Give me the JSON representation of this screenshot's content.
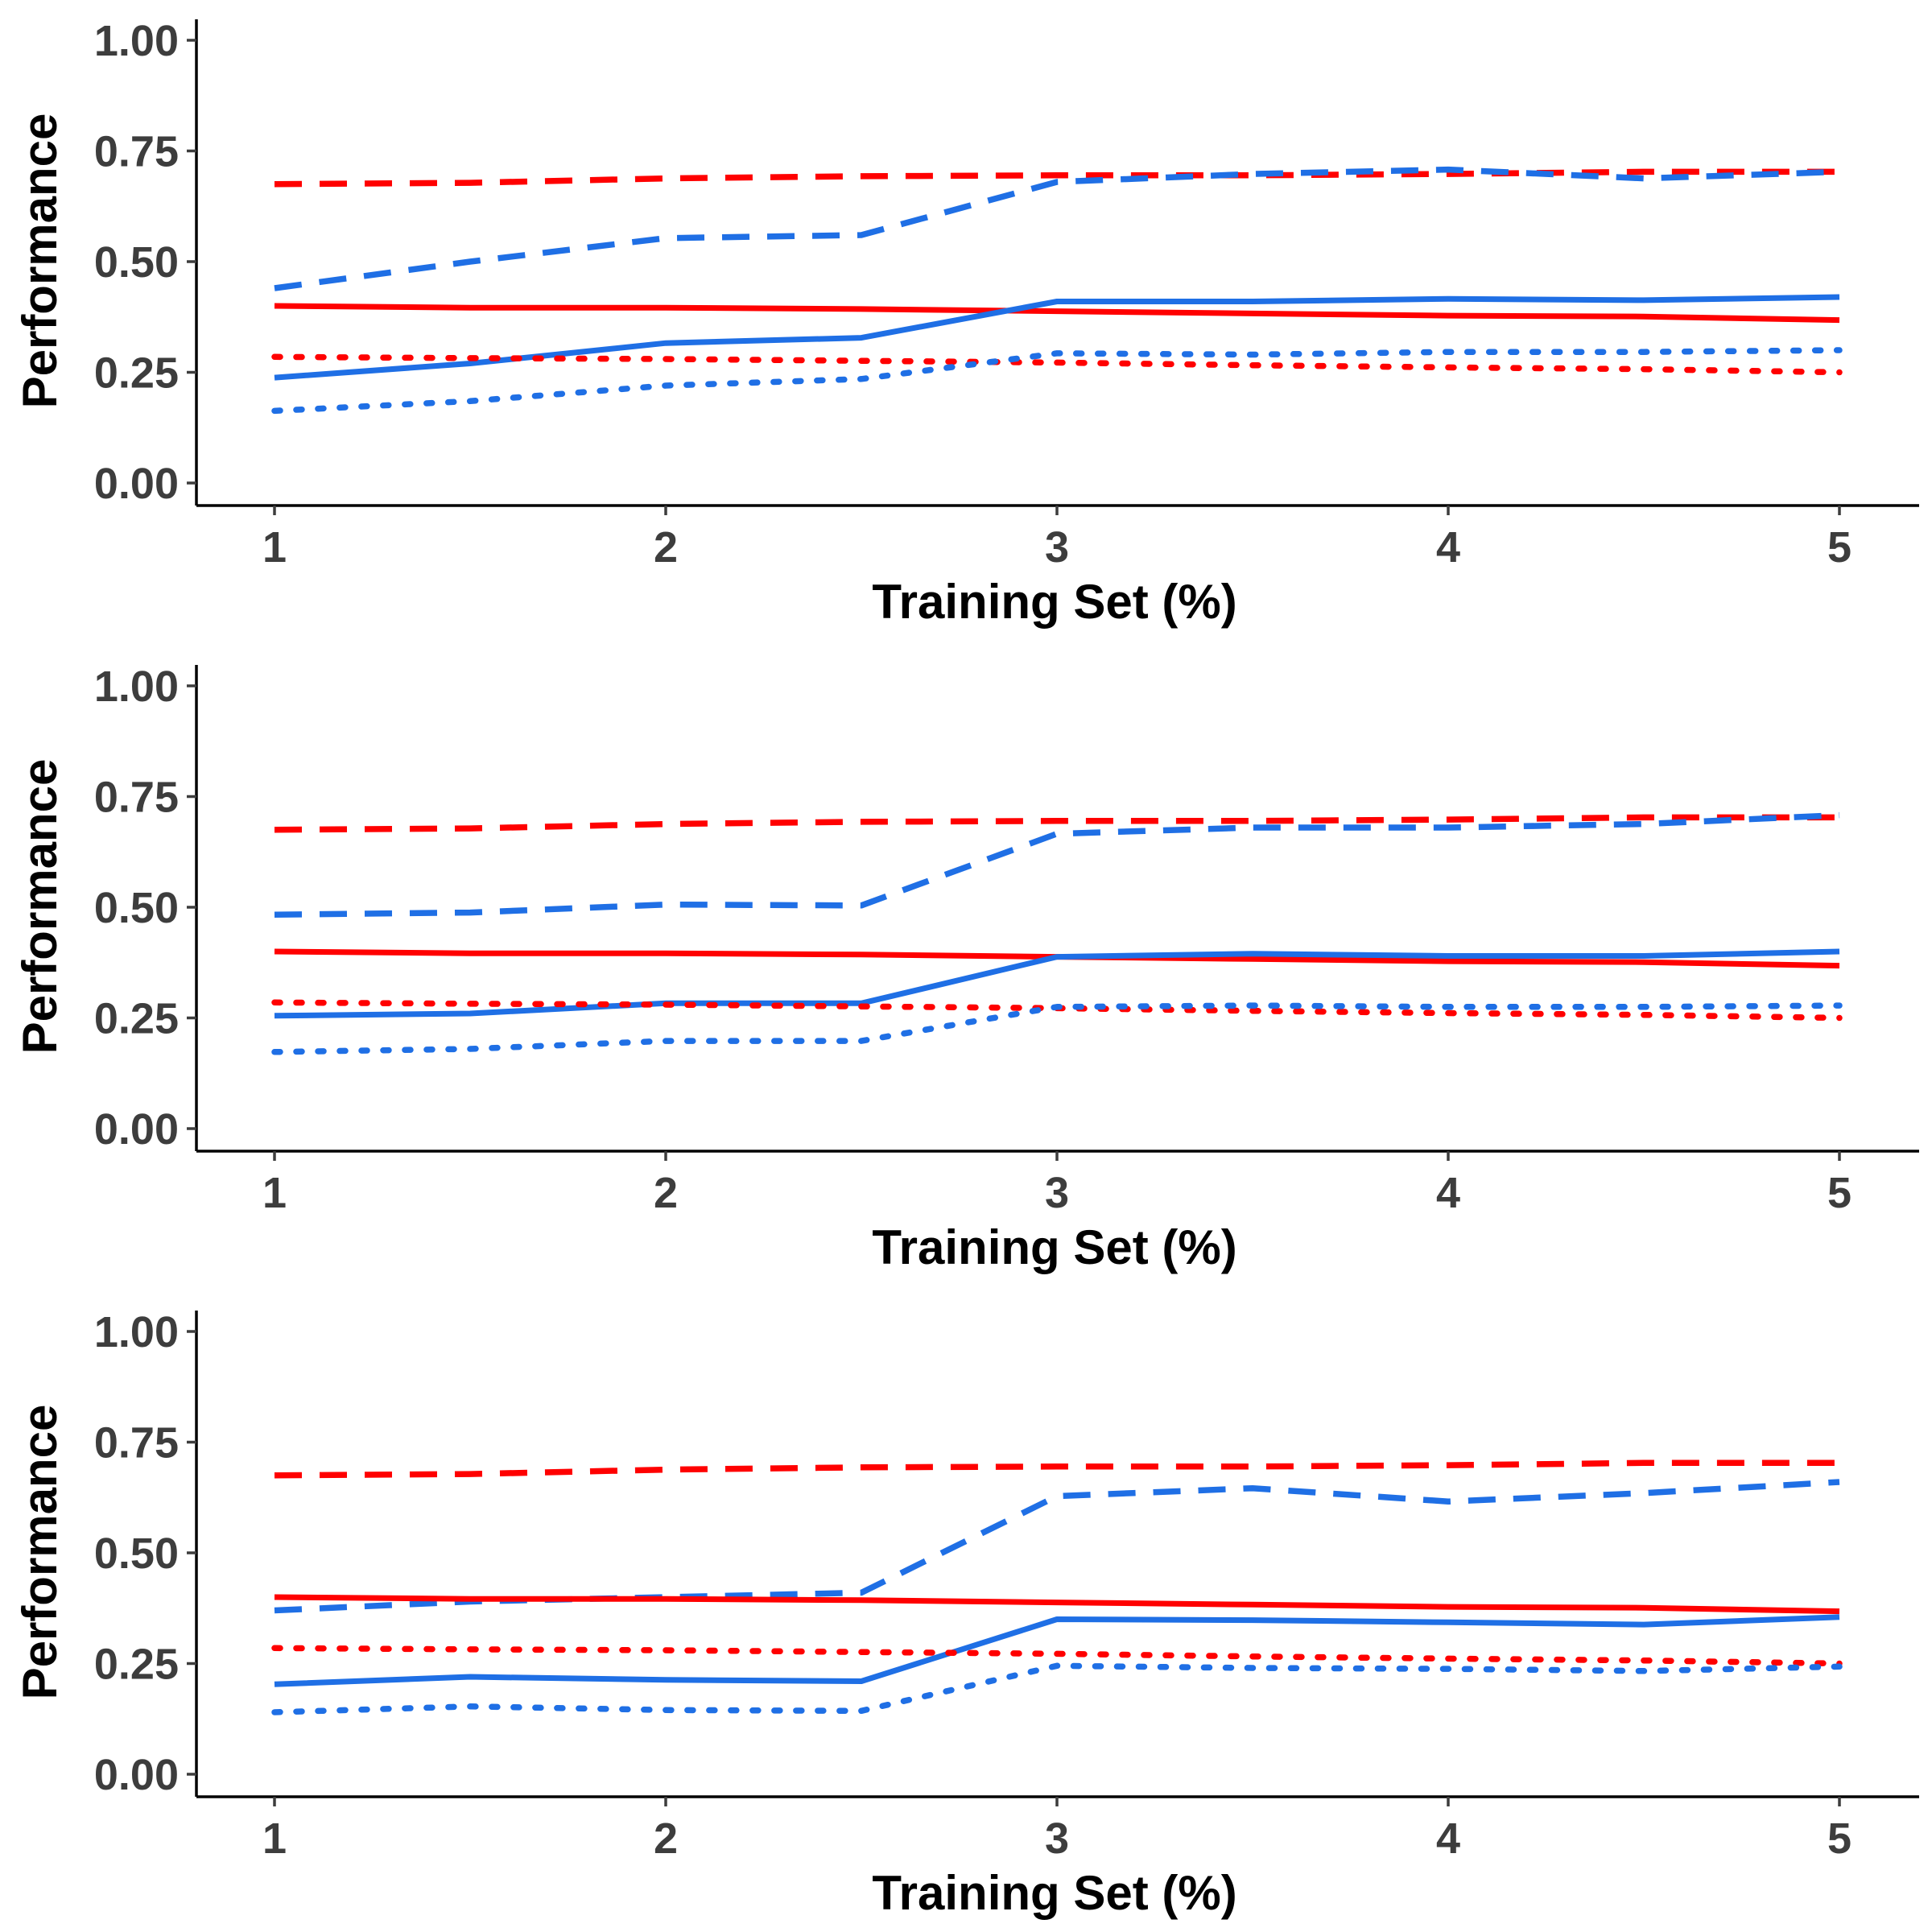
{
  "chart_data": [
    {
      "type": "line",
      "xlabel": "Training Set (%)",
      "ylabel": "Performance",
      "xlim": [
        0.8,
        5.2
      ],
      "ylim": [
        0.0,
        1.0
      ],
      "xticks": [
        "1",
        "2",
        "3",
        "4",
        "5"
      ],
      "yticks": [
        "0.00",
        "0.25",
        "0.50",
        "0.75",
        "1.00"
      ],
      "grid": false,
      "series": [
        {
          "color": "#ff0000",
          "linestyle": "dashed",
          "x": [
            1,
            1.5,
            2,
            2.5,
            3,
            3.5,
            4,
            4.5,
            5
          ],
          "y": [
            0.675,
            0.678,
            0.688,
            0.693,
            0.695,
            0.695,
            0.698,
            0.703,
            0.703
          ]
        },
        {
          "color": "#1f6fe5",
          "linestyle": "dashed",
          "x": [
            1,
            1.5,
            2,
            2.5,
            3,
            3.5,
            4,
            4.5,
            5
          ],
          "y": [
            0.44,
            0.5,
            0.553,
            0.56,
            0.68,
            0.698,
            0.708,
            0.688,
            0.703
          ]
        },
        {
          "color": "#ff0000",
          "linestyle": "solid",
          "x": [
            1,
            1.5,
            2,
            2.5,
            3,
            3.5,
            4,
            4.5,
            5
          ],
          "y": [
            0.4,
            0.396,
            0.396,
            0.393,
            0.388,
            0.383,
            0.378,
            0.376,
            0.368
          ]
        },
        {
          "color": "#1f6fe5",
          "linestyle": "solid",
          "x": [
            1,
            1.5,
            2,
            2.5,
            3,
            3.5,
            4,
            4.5,
            5
          ],
          "y": [
            0.238,
            0.27,
            0.316,
            0.328,
            0.41,
            0.41,
            0.416,
            0.413,
            0.42
          ]
        },
        {
          "color": "#ff0000",
          "linestyle": "dotted",
          "x": [
            1,
            1.5,
            2,
            2.5,
            3,
            3.5,
            4,
            4.5,
            5
          ],
          "y": [
            0.285,
            0.282,
            0.28,
            0.276,
            0.272,
            0.266,
            0.261,
            0.257,
            0.25
          ]
        },
        {
          "color": "#1f6fe5",
          "linestyle": "dotted",
          "x": [
            1,
            1.5,
            2,
            2.5,
            3,
            3.5,
            4,
            4.5,
            5
          ],
          "y": [
            0.163,
            0.185,
            0.22,
            0.235,
            0.293,
            0.29,
            0.296,
            0.296,
            0.3
          ]
        }
      ]
    },
    {
      "type": "line",
      "xlabel": "Training Set (%)",
      "ylabel": "Performance",
      "xlim": [
        0.8,
        5.2
      ],
      "ylim": [
        0.0,
        1.0
      ],
      "xticks": [
        "1",
        "2",
        "3",
        "4",
        "5"
      ],
      "yticks": [
        "0.00",
        "0.25",
        "0.50",
        "0.75",
        "1.00"
      ],
      "grid": false,
      "series": [
        {
          "color": "#ff0000",
          "linestyle": "dashed",
          "x": [
            1,
            1.5,
            2,
            2.5,
            3,
            3.5,
            4,
            4.5,
            5
          ],
          "y": [
            0.675,
            0.678,
            0.688,
            0.693,
            0.695,
            0.695,
            0.698,
            0.703,
            0.703
          ]
        },
        {
          "color": "#1f6fe5",
          "linestyle": "dashed",
          "x": [
            1,
            1.5,
            2,
            2.5,
            3,
            3.5,
            4,
            4.5,
            5
          ],
          "y": [
            0.483,
            0.488,
            0.506,
            0.504,
            0.666,
            0.68,
            0.68,
            0.688,
            0.708
          ]
        },
        {
          "color": "#ff0000",
          "linestyle": "solid",
          "x": [
            1,
            1.5,
            2,
            2.5,
            3,
            3.5,
            4,
            4.5,
            5
          ],
          "y": [
            0.4,
            0.396,
            0.396,
            0.393,
            0.388,
            0.383,
            0.378,
            0.376,
            0.368
          ]
        },
        {
          "color": "#1f6fe5",
          "linestyle": "solid",
          "x": [
            1,
            1.5,
            2,
            2.5,
            3,
            3.5,
            4,
            4.5,
            5
          ],
          "y": [
            0.255,
            0.26,
            0.283,
            0.283,
            0.388,
            0.395,
            0.39,
            0.39,
            0.4
          ]
        },
        {
          "color": "#ff0000",
          "linestyle": "dotted",
          "x": [
            1,
            1.5,
            2,
            2.5,
            3,
            3.5,
            4,
            4.5,
            5
          ],
          "y": [
            0.285,
            0.282,
            0.28,
            0.276,
            0.272,
            0.266,
            0.261,
            0.257,
            0.25
          ]
        },
        {
          "color": "#1f6fe5",
          "linestyle": "dotted",
          "x": [
            1,
            1.5,
            2,
            2.5,
            3,
            3.5,
            4,
            4.5,
            5
          ],
          "y": [
            0.173,
            0.18,
            0.198,
            0.198,
            0.275,
            0.278,
            0.275,
            0.275,
            0.278
          ]
        }
      ]
    },
    {
      "type": "line",
      "xlabel": "Training Set (%)",
      "ylabel": "Performance",
      "xlim": [
        0.8,
        5.2
      ],
      "ylim": [
        0.0,
        1.0
      ],
      "xticks": [
        "1",
        "2",
        "3",
        "4",
        "5"
      ],
      "yticks": [
        "0.00",
        "0.25",
        "0.50",
        "0.75",
        "1.00"
      ],
      "grid": false,
      "series": [
        {
          "color": "#ff0000",
          "linestyle": "dashed",
          "x": [
            1,
            1.5,
            2,
            2.5,
            3,
            3.5,
            4,
            4.5,
            5
          ],
          "y": [
            0.675,
            0.678,
            0.688,
            0.693,
            0.695,
            0.695,
            0.698,
            0.703,
            0.703
          ]
        },
        {
          "color": "#1f6fe5",
          "linestyle": "dashed",
          "x": [
            1,
            1.5,
            2,
            2.5,
            3,
            3.5,
            4,
            4.5,
            5
          ],
          "y": [
            0.37,
            0.39,
            0.4,
            0.41,
            0.628,
            0.646,
            0.616,
            0.635,
            0.66
          ]
        },
        {
          "color": "#ff0000",
          "linestyle": "solid",
          "x": [
            1,
            1.5,
            2,
            2.5,
            3,
            3.5,
            4,
            4.5,
            5
          ],
          "y": [
            0.4,
            0.396,
            0.396,
            0.393,
            0.388,
            0.383,
            0.378,
            0.376,
            0.368
          ]
        },
        {
          "color": "#1f6fe5",
          "linestyle": "solid",
          "x": [
            1,
            1.5,
            2,
            2.5,
            3,
            3.5,
            4,
            4.5,
            5
          ],
          "y": [
            0.203,
            0.22,
            0.213,
            0.21,
            0.35,
            0.348,
            0.343,
            0.338,
            0.355
          ]
        },
        {
          "color": "#ff0000",
          "linestyle": "dotted",
          "x": [
            1,
            1.5,
            2,
            2.5,
            3,
            3.5,
            4,
            4.5,
            5
          ],
          "y": [
            0.285,
            0.282,
            0.28,
            0.276,
            0.272,
            0.266,
            0.261,
            0.257,
            0.25
          ]
        },
        {
          "color": "#1f6fe5",
          "linestyle": "dotted",
          "x": [
            1,
            1.5,
            2,
            2.5,
            3,
            3.5,
            4,
            4.5,
            5
          ],
          "y": [
            0.14,
            0.153,
            0.145,
            0.143,
            0.245,
            0.24,
            0.238,
            0.233,
            0.243
          ]
        }
      ]
    }
  ]
}
